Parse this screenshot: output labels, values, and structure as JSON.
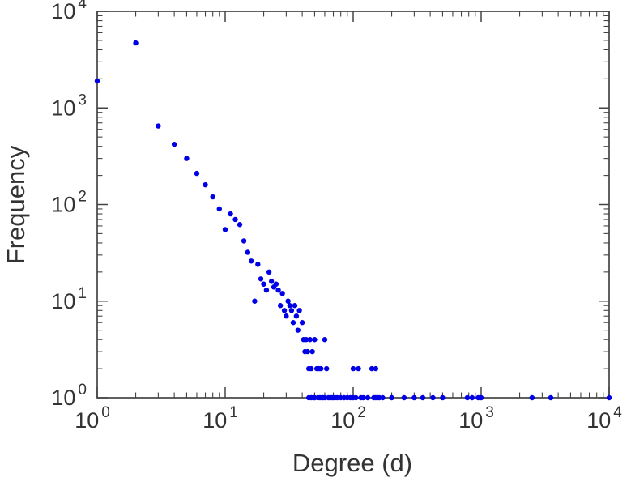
{
  "chart_data": {
    "type": "scatter",
    "xlabel": "Degree (d)",
    "ylabel": "Frequency",
    "x_scale": "log",
    "y_scale": "log",
    "xlim": [
      1,
      10000
    ],
    "ylim": [
      1,
      10000
    ],
    "tick_base": "10",
    "x_tick_exponents": [
      0,
      1,
      2,
      3,
      4
    ],
    "y_tick_exponents": [
      0,
      1,
      2,
      3,
      4
    ],
    "grid": false,
    "marker_color": "#0000e6",
    "marker_radius": 3.2,
    "frame_color": "#444444",
    "text_color": "#333333",
    "points": [
      [
        1,
        1900
      ],
      [
        2,
        4700
      ],
      [
        3,
        650
      ],
      [
        4,
        420
      ],
      [
        5,
        300
      ],
      [
        6,
        210
      ],
      [
        7,
        160
      ],
      [
        8,
        120
      ],
      [
        9,
        90
      ],
      [
        10,
        55
      ],
      [
        11,
        80
      ],
      [
        12,
        70
      ],
      [
        13,
        62
      ],
      [
        14,
        42
      ],
      [
        15,
        32
      ],
      [
        16,
        26
      ],
      [
        17,
        10
      ],
      [
        18,
        24
      ],
      [
        19,
        17
      ],
      [
        20,
        15
      ],
      [
        21,
        13
      ],
      [
        22,
        20
      ],
      [
        23,
        16
      ],
      [
        24,
        14
      ],
      [
        25,
        15
      ],
      [
        26,
        13
      ],
      [
        27,
        9
      ],
      [
        28,
        12
      ],
      [
        29,
        8
      ],
      [
        30,
        7
      ],
      [
        31,
        10
      ],
      [
        32,
        9
      ],
      [
        33,
        8
      ],
      [
        34,
        6
      ],
      [
        35,
        9
      ],
      [
        36,
        7
      ],
      [
        37,
        5
      ],
      [
        38,
        8
      ],
      [
        40,
        6
      ],
      [
        41,
        4
      ],
      [
        42,
        3
      ],
      [
        43,
        4
      ],
      [
        44,
        3
      ],
      [
        45,
        2
      ],
      [
        45,
        1
      ],
      [
        46,
        4
      ],
      [
        47,
        2
      ],
      [
        47,
        1
      ],
      [
        48,
        3
      ],
      [
        49,
        1
      ],
      [
        50,
        4
      ],
      [
        50,
        1
      ],
      [
        52,
        2
      ],
      [
        53,
        1
      ],
      [
        54,
        2
      ],
      [
        55,
        1
      ],
      [
        56,
        2
      ],
      [
        57,
        1
      ],
      [
        58,
        1
      ],
      [
        60,
        4
      ],
      [
        60,
        1
      ],
      [
        62,
        2
      ],
      [
        64,
        1
      ],
      [
        66,
        1
      ],
      [
        68,
        1
      ],
      [
        70,
        1
      ],
      [
        72,
        1
      ],
      [
        75,
        1
      ],
      [
        80,
        1
      ],
      [
        85,
        1
      ],
      [
        90,
        1
      ],
      [
        95,
        1
      ],
      [
        100,
        2
      ],
      [
        100,
        1
      ],
      [
        105,
        1
      ],
      [
        110,
        2
      ],
      [
        115,
        1
      ],
      [
        120,
        1
      ],
      [
        130,
        1
      ],
      [
        140,
        2
      ],
      [
        145,
        1
      ],
      [
        150,
        2
      ],
      [
        150,
        1
      ],
      [
        155,
        1
      ],
      [
        160,
        1
      ],
      [
        170,
        1
      ],
      [
        200,
        1
      ],
      [
        250,
        1
      ],
      [
        300,
        1
      ],
      [
        350,
        1
      ],
      [
        420,
        1
      ],
      [
        500,
        1
      ],
      [
        780,
        1
      ],
      [
        850,
        1
      ],
      [
        950,
        1
      ],
      [
        1000,
        1
      ],
      [
        2500,
        1
      ],
      [
        3500,
        1
      ],
      [
        10000,
        1
      ]
    ]
  }
}
